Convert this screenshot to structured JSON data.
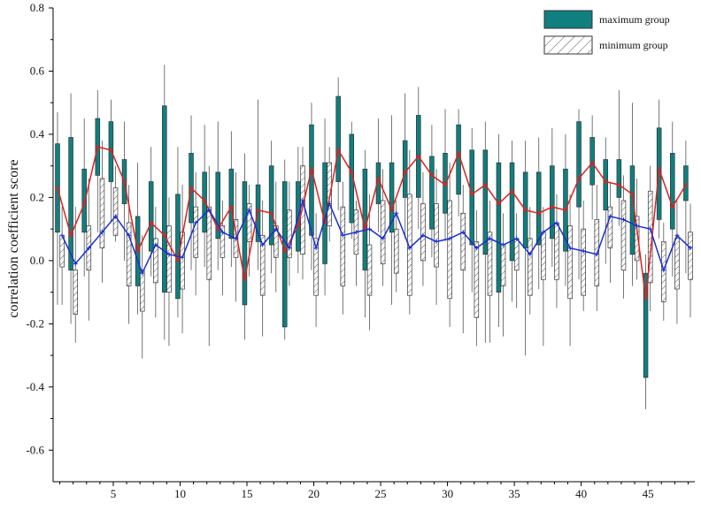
{
  "chart_data": {
    "type": "box",
    "ylabel": "correlation coefficient score",
    "xlabel": "",
    "xlim": [
      0.5,
      48.5
    ],
    "ylim": [
      -0.7,
      0.8
    ],
    "x_ticks": [
      5,
      10,
      15,
      20,
      25,
      30,
      35,
      40,
      45
    ],
    "y_ticks": [
      -0.6,
      -0.4,
      -0.2,
      0.0,
      0.2,
      0.4,
      0.6,
      0.8
    ],
    "y_tick_labels": [
      "-0.6",
      "-0.4",
      "-0.2",
      "0.0",
      "0.2",
      "0.4",
      "0.6",
      "0.8"
    ],
    "x_tick_labels": [
      "5",
      "10",
      "15",
      "20",
      "25",
      "30",
      "35",
      "40",
      "45"
    ],
    "legend_position": "top-right",
    "grid": false,
    "series": [
      {
        "name": "maximum group",
        "color": "#0f7f7f",
        "mean_line_color": "#e02020",
        "fill": "solid",
        "boxes": [
          [
            0.09,
            0.37,
            -0.14,
            0.47,
            0.23
          ],
          [
            -0.03,
            0.39,
            -0.2,
            0.53,
            0.08
          ],
          [
            0.09,
            0.29,
            -0.05,
            0.45,
            0.18
          ],
          [
            0.27,
            0.45,
            0.09,
            0.54,
            0.36
          ],
          [
            0.25,
            0.44,
            0.12,
            0.51,
            0.35
          ],
          [
            0.18,
            0.32,
            0.0,
            0.44,
            0.25
          ],
          [
            -0.08,
            0.14,
            -0.17,
            0.31,
            0.03
          ],
          [
            0.03,
            0.25,
            -0.05,
            0.36,
            0.12
          ],
          [
            -0.1,
            0.49,
            -0.25,
            0.62,
            0.08
          ],
          [
            -0.12,
            0.21,
            -0.18,
            0.36,
            0.0
          ],
          [
            0.12,
            0.34,
            -0.03,
            0.46,
            0.23
          ],
          [
            0.09,
            0.28,
            -0.02,
            0.43,
            0.19
          ],
          [
            0.07,
            0.28,
            -0.03,
            0.44,
            0.1
          ],
          [
            0.07,
            0.29,
            -0.02,
            0.41,
            0.17
          ],
          [
            -0.14,
            0.25,
            -0.25,
            0.34,
            -0.06
          ],
          [
            0.06,
            0.24,
            -0.03,
            0.51,
            0.16
          ],
          [
            0.05,
            0.3,
            -0.04,
            0.38,
            0.15
          ],
          [
            -0.21,
            0.25,
            -0.25,
            0.32,
            0.03
          ],
          [
            0.03,
            0.25,
            -0.04,
            0.36,
            0.11
          ],
          [
            0.08,
            0.43,
            -0.03,
            0.5,
            0.29
          ],
          [
            -0.01,
            0.31,
            -0.11,
            0.45,
            0.12
          ],
          [
            0.25,
            0.52,
            0.16,
            0.58,
            0.35
          ],
          [
            0.12,
            0.4,
            0.07,
            0.44,
            0.28
          ],
          [
            -0.03,
            0.29,
            -0.18,
            0.35,
            0.1
          ],
          [
            0.18,
            0.31,
            0.09,
            0.45,
            0.26
          ],
          [
            0.09,
            0.31,
            -0.14,
            0.46,
            0.16
          ],
          [
            0.2,
            0.38,
            0.07,
            0.53,
            0.28
          ],
          [
            0.2,
            0.46,
            0.1,
            0.55,
            0.33
          ],
          [
            0.1,
            0.33,
            0.01,
            0.43,
            0.27
          ],
          [
            0.15,
            0.34,
            0.06,
            0.48,
            0.24
          ],
          [
            0.21,
            0.43,
            0.14,
            0.48,
            0.34
          ],
          [
            0.05,
            0.35,
            -0.1,
            0.42,
            0.21
          ],
          [
            0.02,
            0.35,
            -0.26,
            0.44,
            0.24
          ],
          [
            -0.1,
            0.31,
            -0.21,
            0.4,
            0.18
          ],
          [
            0.0,
            0.31,
            -0.13,
            0.38,
            0.22
          ],
          [
            0.04,
            0.28,
            -0.3,
            0.38,
            0.16
          ],
          [
            0.05,
            0.28,
            -0.09,
            0.39,
            0.15
          ],
          [
            0.07,
            0.3,
            -0.02,
            0.42,
            0.17
          ],
          [
            0.03,
            0.29,
            -0.08,
            0.4,
            0.16
          ],
          [
            0.17,
            0.44,
            -0.06,
            0.48,
            0.26
          ],
          [
            0.24,
            0.39,
            0.13,
            0.46,
            0.31
          ],
          [
            0.16,
            0.32,
            -0.01,
            0.39,
            0.25
          ],
          [
            0.2,
            0.32,
            0.11,
            0.54,
            0.24
          ],
          [
            0.02,
            0.3,
            -0.08,
            0.5,
            0.21
          ],
          [
            -0.37,
            -0.04,
            -0.47,
            0.02,
            -0.12
          ],
          [
            0.13,
            0.42,
            0.07,
            0.51,
            0.29
          ],
          [
            0.1,
            0.34,
            -0.05,
            0.44,
            0.17
          ],
          [
            0.19,
            0.3,
            -0.04,
            0.38,
            0.24
          ]
        ]
      },
      {
        "name": "minimum group",
        "color": "#555555",
        "mean_line_color": "#1a2fd0",
        "fill": "hatched",
        "boxes": [
          [
            -0.02,
            0.08,
            -0.14,
            0.17,
            0.08
          ],
          [
            -0.17,
            -0.03,
            -0.26,
            0.17,
            -0.01
          ],
          [
            -0.03,
            0.11,
            -0.19,
            0.26,
            0.04
          ],
          [
            0.04,
            0.26,
            -0.07,
            0.38,
            0.09
          ],
          [
            0.08,
            0.23,
            0.06,
            0.3,
            0.14
          ],
          [
            -0.08,
            0.12,
            -0.2,
            0.24,
            0.08
          ],
          [
            -0.16,
            -0.03,
            -0.31,
            0.08,
            -0.04
          ],
          [
            -0.07,
            0.07,
            -0.18,
            0.17,
            0.05
          ],
          [
            -0.1,
            0.11,
            -0.27,
            0.2,
            0.02
          ],
          [
            -0.09,
            0.09,
            -0.23,
            0.24,
            0.01
          ],
          [
            0.01,
            0.17,
            -0.11,
            0.28,
            0.12
          ],
          [
            -0.06,
            0.17,
            -0.27,
            0.3,
            0.16
          ],
          [
            0.01,
            0.11,
            -0.11,
            0.19,
            0.09
          ],
          [
            0.01,
            0.13,
            -0.13,
            0.28,
            0.07
          ],
          [
            0.06,
            0.18,
            -0.05,
            0.24,
            0.16
          ],
          [
            -0.11,
            0.08,
            -0.24,
            0.19,
            0.05
          ],
          [
            0.01,
            0.11,
            -0.1,
            0.25,
            0.1
          ],
          [
            0.01,
            0.16,
            -0.08,
            0.25,
            0.04
          ],
          [
            0.02,
            0.3,
            -0.06,
            0.36,
            0.19
          ],
          [
            -0.11,
            0.07,
            -0.21,
            0.15,
            0.04
          ],
          [
            0.11,
            0.31,
            0.06,
            0.36,
            0.18
          ],
          [
            -0.08,
            0.17,
            -0.17,
            0.25,
            0.08
          ],
          [
            0.02,
            0.16,
            -0.08,
            0.19,
            0.09
          ],
          [
            -0.11,
            0.05,
            -0.22,
            0.21,
            0.1
          ],
          [
            -0.01,
            0.19,
            -0.08,
            0.29,
            0.07
          ],
          [
            -0.04,
            0.1,
            -0.1,
            0.19,
            0.15
          ],
          [
            -0.11,
            0.21,
            -0.17,
            0.35,
            0.04
          ],
          [
            0.0,
            0.18,
            -0.08,
            0.28,
            0.08
          ],
          [
            -0.02,
            0.18,
            -0.14,
            0.29,
            0.06
          ],
          [
            -0.12,
            0.19,
            -0.21,
            0.31,
            0.07
          ],
          [
            -0.03,
            0.15,
            -0.23,
            0.24,
            0.09
          ],
          [
            -0.18,
            0.06,
            -0.27,
            0.16,
            0.04
          ],
          [
            -0.11,
            0.09,
            -0.26,
            0.19,
            0.07
          ],
          [
            -0.08,
            0.05,
            -0.24,
            0.15,
            0.05
          ],
          [
            -0.03,
            0.07,
            -0.15,
            0.15,
            0.07
          ],
          [
            -0.11,
            0.07,
            -0.17,
            0.17,
            0.02
          ],
          [
            -0.06,
            0.09,
            -0.27,
            0.17,
            0.09
          ],
          [
            -0.06,
            0.12,
            -0.15,
            0.21,
            0.12
          ],
          [
            -0.12,
            0.11,
            -0.27,
            0.21,
            0.04
          ],
          [
            -0.11,
            0.1,
            -0.16,
            0.19,
            0.03
          ],
          [
            -0.08,
            0.13,
            -0.16,
            0.24,
            0.02
          ],
          [
            0.04,
            0.17,
            -0.07,
            0.25,
            0.14
          ],
          [
            -0.03,
            0.19,
            -0.12,
            0.27,
            0.13
          ],
          [
            0.0,
            0.14,
            -0.06,
            0.26,
            0.11
          ],
          [
            -0.07,
            0.22,
            -0.16,
            0.3,
            0.1
          ],
          [
            -0.13,
            0.06,
            -0.19,
            0.12,
            -0.03
          ],
          [
            -0.09,
            0.07,
            -0.2,
            0.19,
            0.08
          ],
          [
            -0.06,
            0.09,
            -0.18,
            0.18,
            0.04
          ]
        ]
      }
    ]
  }
}
